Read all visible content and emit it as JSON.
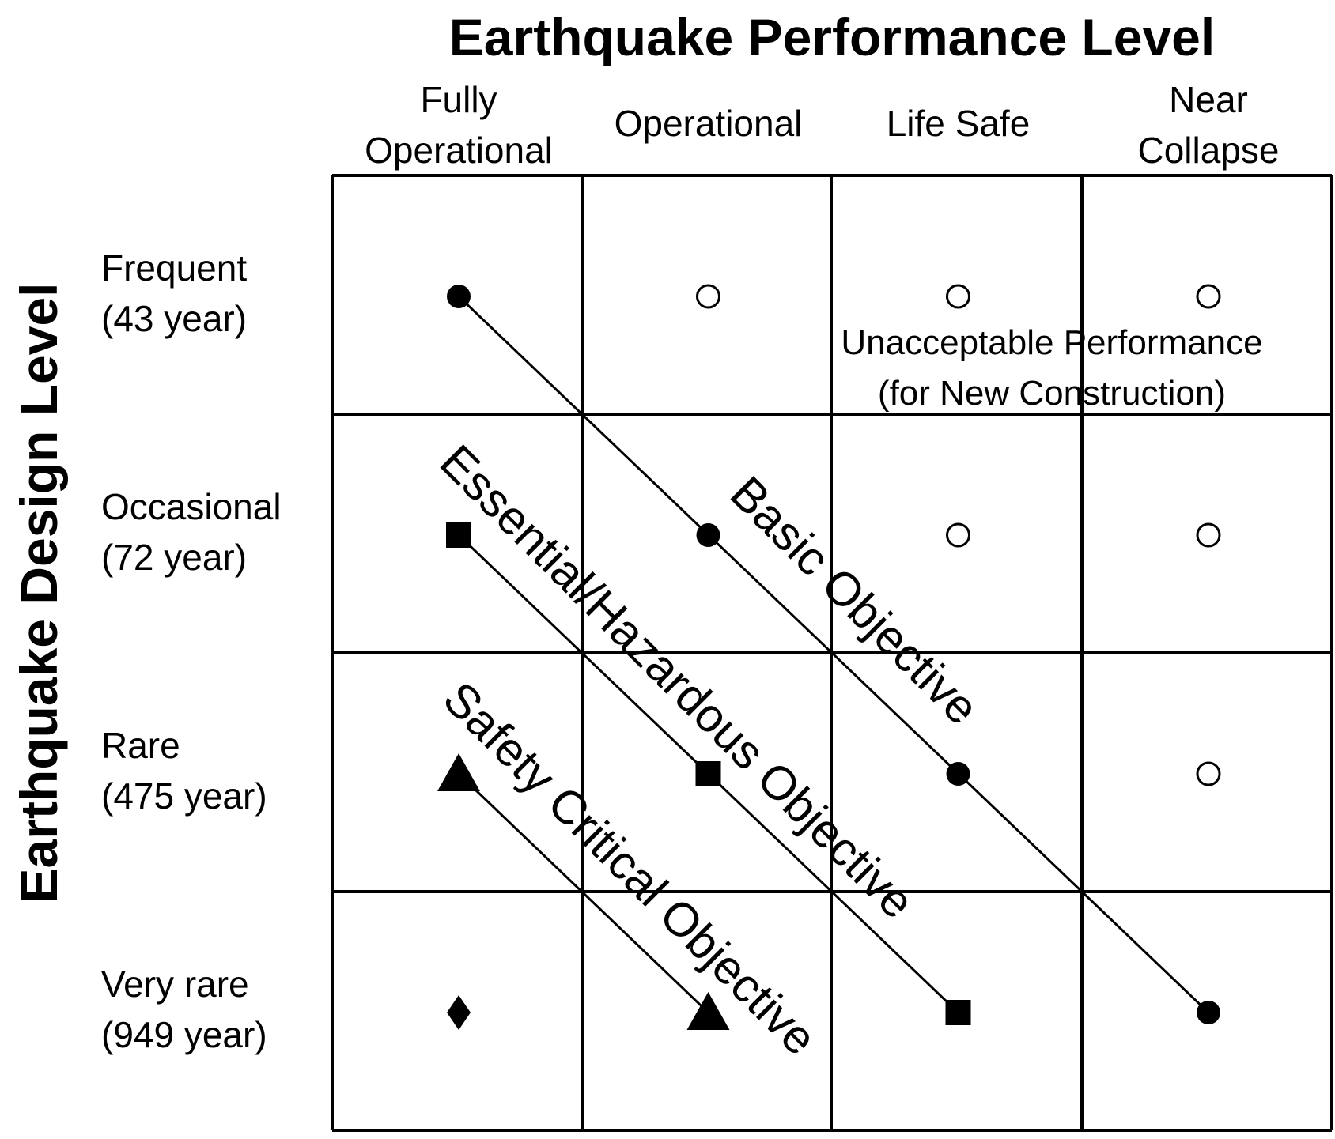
{
  "top_title": "Earthquake Performance Level",
  "side_title": "Earthquake Design Level",
  "columns": [
    {
      "lines": [
        "Fully",
        "Operational"
      ]
    },
    {
      "lines": [
        "Operational"
      ]
    },
    {
      "lines": [
        "Life Safe"
      ]
    },
    {
      "lines": [
        "Near",
        "Collapse"
      ]
    }
  ],
  "rows": [
    {
      "name": "Frequent",
      "period": "(43 year)"
    },
    {
      "name": "Occasional",
      "period": "(72 year)"
    },
    {
      "name": "Rare",
      "period": "(475 year)"
    },
    {
      "name": "Very rare",
      "period": "(949 year)"
    }
  ],
  "unacceptable": {
    "line1": "Unacceptable Performance",
    "line2": "(for New Construction)"
  },
  "open_markers": [
    {
      "row": 0,
      "col": 1
    },
    {
      "row": 0,
      "col": 2
    },
    {
      "row": 0,
      "col": 3
    },
    {
      "row": 1,
      "col": 2
    },
    {
      "row": 1,
      "col": 3
    },
    {
      "row": 2,
      "col": 3
    }
  ],
  "objectives": [
    {
      "name": "Basic Objective",
      "marker": "filled-circle",
      "points": [
        {
          "row": 0,
          "col": 0
        },
        {
          "row": 1,
          "col": 1
        },
        {
          "row": 2,
          "col": 2
        },
        {
          "row": 3,
          "col": 3
        }
      ]
    },
    {
      "name": "Essential/Hazardous Objective",
      "marker": "filled-square",
      "points": [
        {
          "row": 1,
          "col": 0
        },
        {
          "row": 2,
          "col": 1
        },
        {
          "row": 3,
          "col": 2
        }
      ]
    },
    {
      "name": "Safety Critical Objective",
      "marker": "filled-triangle",
      "points": [
        {
          "row": 2,
          "col": 0
        },
        {
          "row": 3,
          "col": 1
        }
      ]
    },
    {
      "name": "",
      "marker": "filled-diamond",
      "points": [
        {
          "row": 3,
          "col": 0
        }
      ]
    }
  ]
}
